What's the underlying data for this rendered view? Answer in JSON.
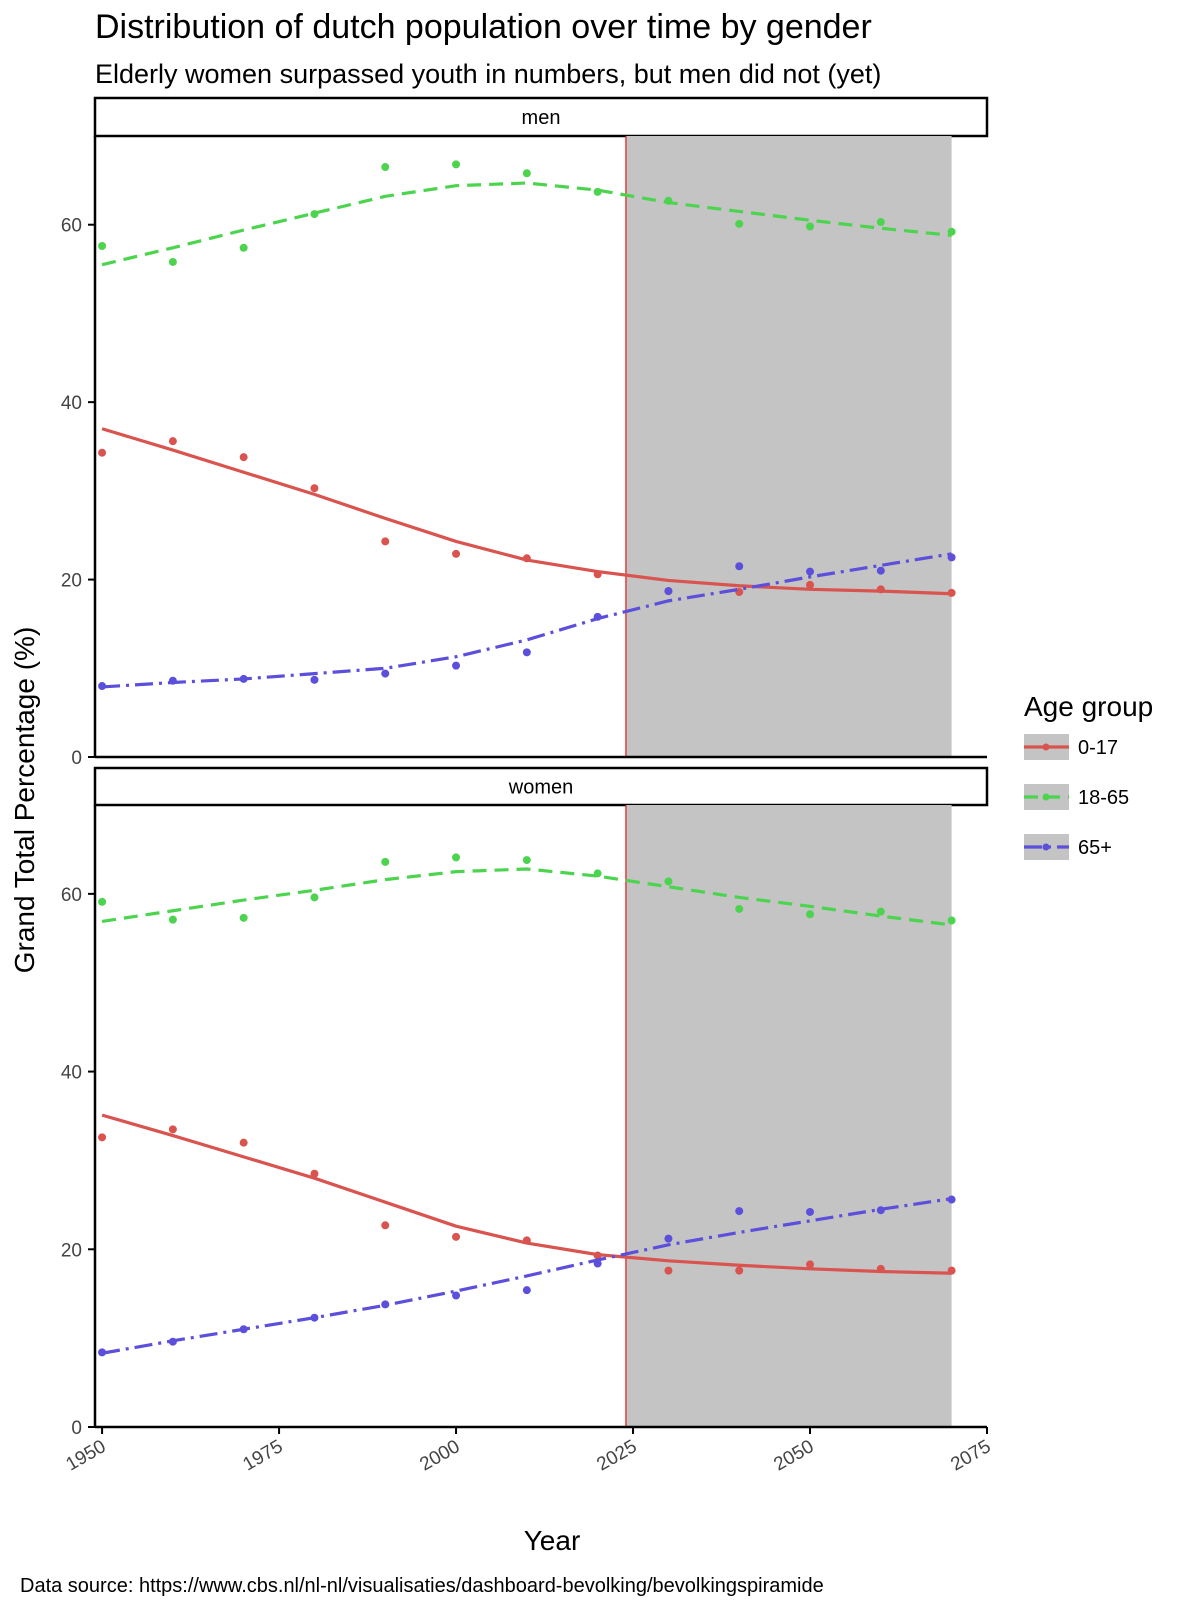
{
  "chart_data": {
    "type": "line",
    "title": "Distribution of dutch population over time by gender",
    "subtitle": "Elderly women surpassed youth in numbers, but men did not (yet)",
    "xlabel": "Year",
    "ylabel": "Grand Total Percentage (%)",
    "caption": "Data source: https://www.cbs.nl/nl-nl/visualisaties/dashboard-bevolking/bevolkingspiramide",
    "xlim": [
      1949,
      2075
    ],
    "ylim": [
      0,
      70
    ],
    "x_ticks": [
      1950,
      1975,
      2000,
      2025,
      2050,
      2075
    ],
    "y_ticks": [
      0,
      20,
      40,
      60
    ],
    "grid": false,
    "legend": {
      "title": "Age group",
      "position": "right",
      "entries": [
        "0-17",
        "18-65",
        "65+"
      ]
    },
    "reference_line": {
      "x": 2024,
      "color": "#e8211d"
    },
    "shaded_region": {
      "x_start": 2024,
      "x_end": 2070,
      "color": "#c4c4c4"
    },
    "x": [
      1950,
      1960,
      1970,
      1980,
      1990,
      2000,
      2010,
      2020,
      2030,
      2040,
      2050,
      2060,
      2070
    ],
    "panels": [
      {
        "label": "men",
        "series": [
          {
            "name": "0-17",
            "color": "#d9534f",
            "dash": "solid",
            "points": [
              34.3,
              35.6,
              33.8,
              30.3,
              24.3,
              22.9,
              22.4,
              20.6,
              18.7,
              18.6,
              19.4,
              18.9,
              18.5
            ],
            "trend": [
              37.0,
              34.6,
              32.1,
              29.6,
              26.9,
              24.3,
              22.2,
              20.9,
              19.9,
              19.3,
              18.9,
              18.7,
              18.4
            ]
          },
          {
            "name": "18-65",
            "color": "#4cd44f",
            "dash": "dashed",
            "points": [
              57.6,
              55.8,
              57.4,
              61.2,
              66.5,
              66.8,
              65.8,
              63.7,
              62.7,
              60.1,
              59.8,
              60.3,
              59.2
            ],
            "trend": [
              55.5,
              57.4,
              59.4,
              61.3,
              63.2,
              64.4,
              64.7,
              63.9,
              62.5,
              61.5,
              60.5,
              59.6,
              58.8
            ]
          },
          {
            "name": "65+",
            "color": "#5b4fdb",
            "dash": "dotdash",
            "points": [
              8.0,
              8.6,
              8.8,
              8.7,
              9.4,
              10.3,
              11.8,
              15.8,
              18.7,
              21.5,
              20.9,
              21.0,
              22.5
            ],
            "trend": [
              7.9,
              8.4,
              8.8,
              9.4,
              10.0,
              11.3,
              13.2,
              15.6,
              17.6,
              18.9,
              20.3,
              21.6,
              22.9
            ]
          }
        ]
      },
      {
        "label": "women",
        "series": [
          {
            "name": "0-17",
            "color": "#d9534f",
            "dash": "solid",
            "points": [
              32.6,
              33.5,
              32.0,
              28.5,
              22.7,
              21.4,
              21.0,
              19.3,
              17.6,
              17.6,
              18.3,
              17.8,
              17.6
            ],
            "trend": [
              35.1,
              32.8,
              30.4,
              28.0,
              25.3,
              22.6,
              20.7,
              19.4,
              18.7,
              18.2,
              17.8,
              17.5,
              17.3
            ]
          },
          {
            "name": "18-65",
            "color": "#4cd44f",
            "dash": "dashed",
            "points": [
              59.1,
              57.1,
              57.3,
              59.6,
              63.6,
              64.1,
              63.8,
              62.3,
              61.4,
              58.3,
              57.7,
              58.0,
              57.0
            ],
            "trend": [
              56.9,
              58.1,
              59.3,
              60.4,
              61.6,
              62.5,
              62.8,
              62.0,
              60.8,
              59.6,
              58.6,
              57.5,
              56.5
            ]
          },
          {
            "name": "65+",
            "color": "#5b4fdb",
            "dash": "dotdash",
            "points": [
              8.4,
              9.6,
              11.0,
              12.3,
              13.8,
              14.8,
              15.4,
              18.4,
              21.2,
              24.3,
              24.2,
              24.4,
              25.6
            ],
            "trend": [
              8.3,
              9.7,
              11.0,
              12.3,
              13.7,
              15.3,
              17.0,
              18.8,
              20.5,
              21.9,
              23.2,
              24.5,
              25.7
            ]
          }
        ]
      }
    ]
  }
}
